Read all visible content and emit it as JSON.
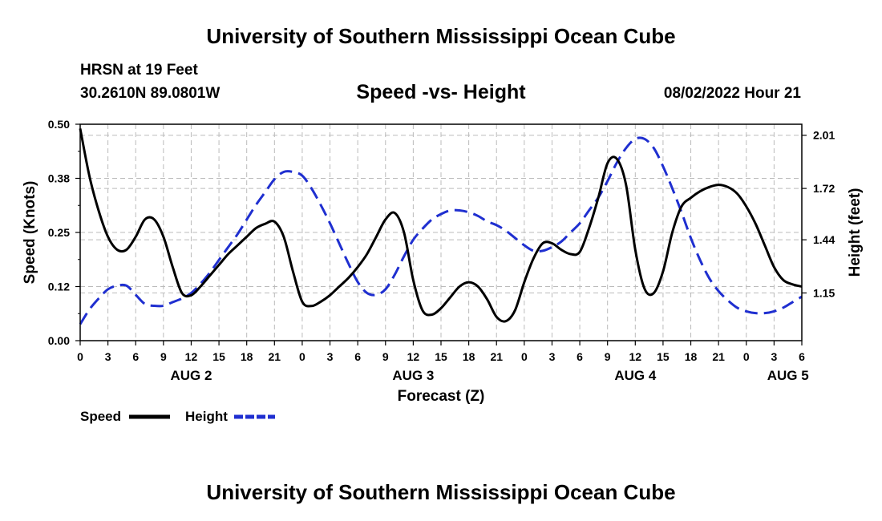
{
  "header": {
    "title": "University of Southern Mississippi Ocean Cube",
    "station": "HRSN at 19 Feet",
    "coordinates": "30.2610N  89.0801W",
    "datetime": "08/02/2022 Hour 21"
  },
  "footer": {
    "title": "University of Southern Mississippi Ocean Cube"
  },
  "legend": {
    "speed_label": "Speed",
    "height_label": "Height"
  },
  "colors": {
    "speed": "#000000",
    "height": "#1f2fd0",
    "grid": "#bbbbbb"
  },
  "chart_data": {
    "type": "line",
    "title": "Speed -vs- Height",
    "xlabel": "Forecast (Z)",
    "ylabel": "Speed (Knots)",
    "y2label": "Height (feet)",
    "xlim": [
      0,
      78
    ],
    "ylim": [
      0,
      0.5
    ],
    "y2lim": [
      0.89,
      2.07
    ],
    "x_ticks": [
      0,
      3,
      6,
      9,
      12,
      15,
      18,
      21,
      24,
      27,
      30,
      33,
      36,
      39,
      42,
      45,
      48,
      51,
      54,
      57,
      60,
      63,
      66,
      69,
      72,
      75,
      78
    ],
    "x_tick_labels": [
      "0",
      "3",
      "6",
      "9",
      "12",
      "15",
      "18",
      "21",
      "0",
      "3",
      "6",
      "9",
      "12",
      "15",
      "18",
      "21",
      "0",
      "3",
      "6",
      "9",
      "12",
      "15",
      "18",
      "21",
      "0",
      "3",
      "6"
    ],
    "day_labels": [
      {
        "x": 12,
        "label": "AUG 2"
      },
      {
        "x": 36,
        "label": "AUG 3"
      },
      {
        "x": 60,
        "label": "AUG 4"
      },
      {
        "x": 76.5,
        "label": "AUG 5"
      }
    ],
    "y_ticks": [
      0.0,
      0.125,
      0.25,
      0.375,
      0.5
    ],
    "y_tick_labels": [
      "0.00",
      "0.12",
      "0.25",
      "0.38",
      "0.50"
    ],
    "y2_ticks": [
      1.15,
      1.44,
      1.72,
      2.01
    ],
    "y2_tick_labels": [
      "1.15",
      "1.44",
      "1.72",
      "2.01"
    ],
    "series": [
      {
        "name": "Speed",
        "axis": "left",
        "style": "solid",
        "x": [
          0,
          1,
          2,
          3,
          4,
          5,
          6,
          7,
          8,
          9,
          10,
          11,
          12,
          13,
          14,
          15,
          16,
          17,
          18,
          19,
          20,
          21,
          22,
          23,
          24,
          25,
          26,
          27,
          28,
          29,
          30,
          31,
          32,
          33,
          34,
          35,
          36,
          37,
          38,
          39,
          40,
          41,
          42,
          43,
          44,
          45,
          46,
          47,
          48,
          49,
          50,
          51,
          52,
          53,
          54,
          55,
          56,
          57,
          58,
          59,
          60,
          61,
          62,
          63,
          64,
          65,
          66,
          67,
          68,
          69,
          70,
          71,
          72,
          73,
          74,
          75,
          76,
          77,
          78
        ],
        "values": [
          0.49,
          0.38,
          0.3,
          0.24,
          0.21,
          0.21,
          0.24,
          0.28,
          0.28,
          0.24,
          0.17,
          0.11,
          0.105,
          0.125,
          0.15,
          0.175,
          0.2,
          0.22,
          0.24,
          0.26,
          0.27,
          0.275,
          0.24,
          0.16,
          0.09,
          0.08,
          0.09,
          0.105,
          0.125,
          0.145,
          0.17,
          0.2,
          0.24,
          0.28,
          0.295,
          0.25,
          0.14,
          0.07,
          0.06,
          0.075,
          0.1,
          0.125,
          0.135,
          0.125,
          0.095,
          0.055,
          0.045,
          0.07,
          0.135,
          0.19,
          0.225,
          0.225,
          0.21,
          0.2,
          0.205,
          0.26,
          0.33,
          0.41,
          0.42,
          0.36,
          0.21,
          0.12,
          0.11,
          0.16,
          0.25,
          0.31,
          0.33,
          0.345,
          0.355,
          0.36,
          0.355,
          0.34,
          0.31,
          0.27,
          0.22,
          0.17,
          0.14,
          0.13,
          0.125
        ]
      },
      {
        "name": "Height",
        "axis": "right",
        "style": "dashed",
        "x": [
          0,
          1,
          2,
          3,
          4,
          5,
          6,
          7,
          8,
          9,
          10,
          11,
          12,
          13,
          14,
          15,
          16,
          17,
          18,
          19,
          20,
          21,
          22,
          23,
          24,
          25,
          26,
          27,
          28,
          29,
          30,
          31,
          32,
          33,
          34,
          35,
          36,
          37,
          38,
          39,
          40,
          41,
          42,
          43,
          44,
          45,
          46,
          47,
          48,
          49,
          50,
          51,
          52,
          53,
          54,
          55,
          56,
          57,
          58,
          59,
          60,
          61,
          62,
          63,
          64,
          65,
          66,
          67,
          68,
          69,
          70,
          71,
          72,
          73,
          74,
          75,
          76,
          77,
          78
        ],
        "values": [
          0.98,
          1.06,
          1.12,
          1.17,
          1.19,
          1.19,
          1.14,
          1.09,
          1.08,
          1.08,
          1.1,
          1.12,
          1.15,
          1.2,
          1.26,
          1.33,
          1.4,
          1.47,
          1.55,
          1.63,
          1.7,
          1.77,
          1.81,
          1.81,
          1.79,
          1.72,
          1.63,
          1.53,
          1.42,
          1.31,
          1.21,
          1.15,
          1.14,
          1.17,
          1.25,
          1.35,
          1.44,
          1.5,
          1.55,
          1.58,
          1.6,
          1.6,
          1.59,
          1.57,
          1.54,
          1.52,
          1.49,
          1.45,
          1.41,
          1.38,
          1.38,
          1.4,
          1.43,
          1.48,
          1.53,
          1.6,
          1.67,
          1.76,
          1.86,
          1.94,
          1.99,
          1.99,
          1.94,
          1.84,
          1.72,
          1.59,
          1.45,
          1.33,
          1.23,
          1.16,
          1.11,
          1.07,
          1.05,
          1.04,
          1.04,
          1.05,
          1.07,
          1.1,
          1.13
        ]
      }
    ]
  }
}
